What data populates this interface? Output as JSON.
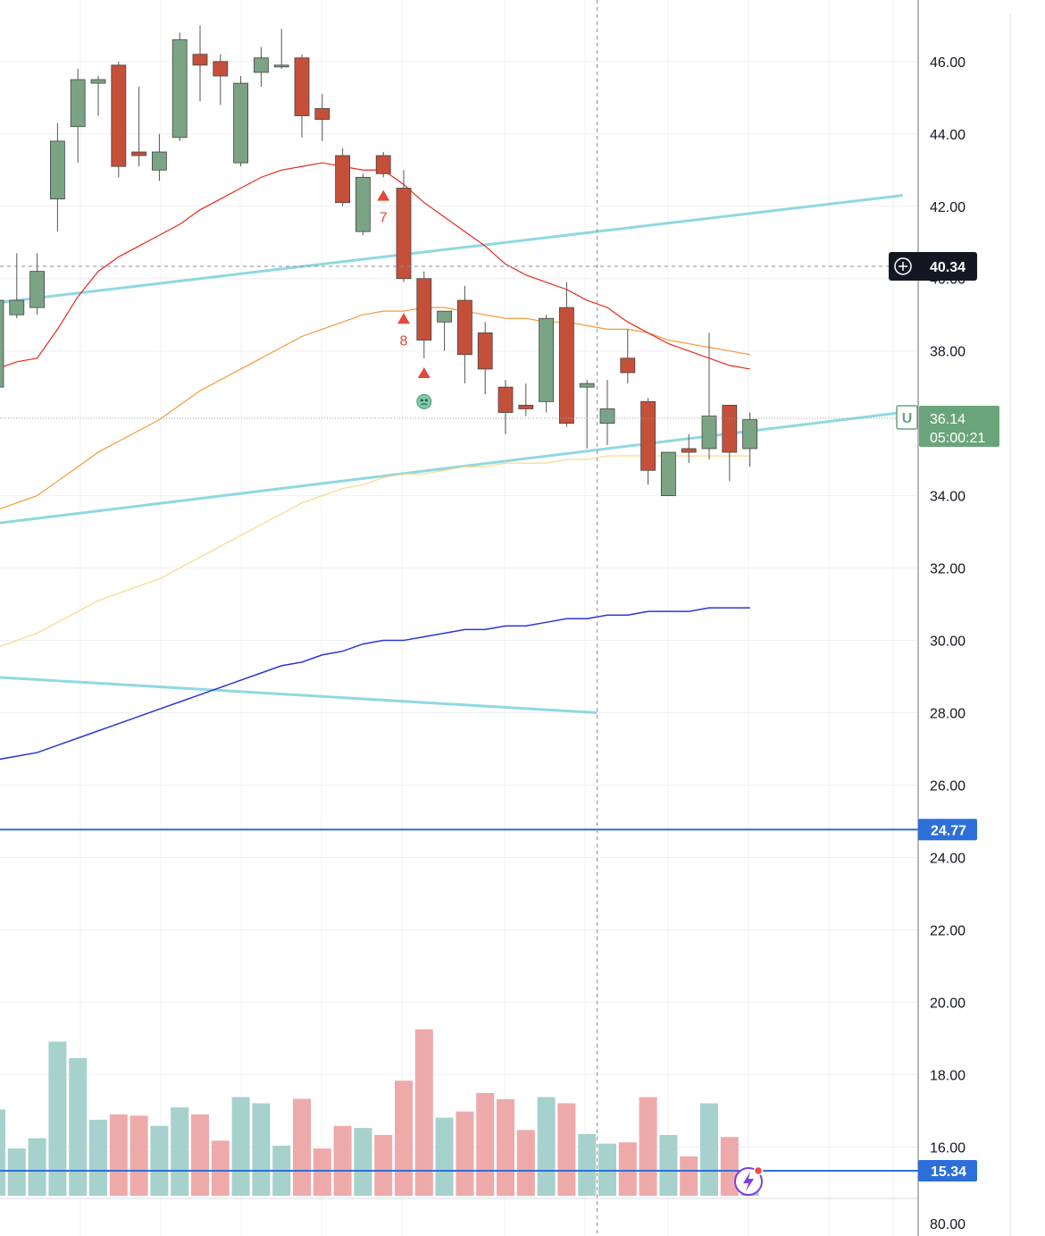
{
  "chart_data": {
    "type": "candlestick",
    "ylim": [
      14.6,
      47.7
    ],
    "y_ticks": [
      "46.00",
      "44.00",
      "42.00",
      "40.00",
      "38.00",
      "34.00",
      "32.00",
      "30.00",
      "28.00",
      "26.00",
      "24.00",
      "22.00",
      "20.00",
      "18.00",
      "16.00"
    ],
    "bottom_pane_label": "80.00",
    "grid": true,
    "candles": [
      {
        "o": 37.0,
        "h": 39.5,
        "l": 36.8,
        "c": 39.4,
        "v": 2.1
      },
      {
        "o": 39.0,
        "h": 40.7,
        "l": 38.9,
        "c": 39.4,
        "v": 1.15
      },
      {
        "o": 39.2,
        "h": 40.7,
        "l": 39.0,
        "c": 40.2,
        "v": 1.4
      },
      {
        "o": 42.2,
        "h": 44.3,
        "l": 41.3,
        "c": 43.8,
        "v": 3.75
      },
      {
        "o": 44.2,
        "h": 45.8,
        "l": 43.2,
        "c": 45.5,
        "v": 3.35
      },
      {
        "o": 45.4,
        "h": 45.6,
        "l": 44.5,
        "c": 45.5,
        "v": 1.85
      },
      {
        "o": 45.9,
        "h": 46.0,
        "l": 42.8,
        "c": 43.1,
        "v": 1.98
      },
      {
        "o": 43.5,
        "h": 45.3,
        "l": 43.1,
        "c": 43.4,
        "v": 1.95
      },
      {
        "o": 43.0,
        "h": 44.0,
        "l": 42.7,
        "c": 43.5,
        "v": 1.7
      },
      {
        "o": 43.9,
        "h": 46.8,
        "l": 43.8,
        "c": 46.6,
        "v": 2.15
      },
      {
        "o": 46.2,
        "h": 47.0,
        "l": 44.9,
        "c": 45.9,
        "v": 1.98
      },
      {
        "o": 46.0,
        "h": 46.2,
        "l": 44.8,
        "c": 45.6,
        "v": 1.34
      },
      {
        "o": 43.2,
        "h": 45.6,
        "l": 43.1,
        "c": 45.4,
        "v": 2.4
      },
      {
        "o": 45.7,
        "h": 46.4,
        "l": 45.3,
        "c": 46.1,
        "v": 2.25
      },
      {
        "o": 45.9,
        "h": 46.9,
        "l": 45.8,
        "c": 45.9,
        "v": 1.22
      },
      {
        "o": 46.1,
        "h": 46.2,
        "l": 43.9,
        "c": 44.5,
        "v": 2.36
      },
      {
        "o": 44.7,
        "h": 45.1,
        "l": 43.8,
        "c": 44.4,
        "v": 1.15
      },
      {
        "o": 43.4,
        "h": 43.6,
        "l": 42.0,
        "c": 42.1,
        "v": 1.7
      },
      {
        "o": 41.3,
        "h": 42.9,
        "l": 41.2,
        "c": 42.8,
        "v": 1.65
      },
      {
        "o": 43.4,
        "h": 43.5,
        "l": 42.8,
        "c": 42.9,
        "v": 1.48
      },
      {
        "o": 42.5,
        "h": 43.0,
        "l": 39.9,
        "c": 40.0,
        "v": 2.8
      },
      {
        "o": 40.0,
        "h": 40.2,
        "l": 37.8,
        "c": 38.3,
        "v": 4.05
      },
      {
        "o": 38.8,
        "h": 39.1,
        "l": 38.0,
        "c": 39.1,
        "v": 1.9
      },
      {
        "o": 39.4,
        "h": 39.8,
        "l": 37.1,
        "c": 37.9,
        "v": 2.05
      },
      {
        "o": 38.5,
        "h": 38.8,
        "l": 36.8,
        "c": 37.5,
        "v": 2.5
      },
      {
        "o": 37.0,
        "h": 37.2,
        "l": 35.7,
        "c": 36.3,
        "v": 2.35
      },
      {
        "o": 36.5,
        "h": 37.1,
        "l": 36.2,
        "c": 36.4,
        "v": 1.6
      },
      {
        "o": 36.6,
        "h": 39.0,
        "l": 36.3,
        "c": 38.9,
        "v": 2.4
      },
      {
        "o": 39.2,
        "h": 39.9,
        "l": 35.9,
        "c": 36.0,
        "v": 2.25
      },
      {
        "o": 37.0,
        "h": 37.2,
        "l": 35.3,
        "c": 37.1,
        "v": 1.5
      },
      {
        "o": 36.0,
        "h": 37.2,
        "l": 35.4,
        "c": 36.4,
        "v": 1.27
      },
      {
        "o": 37.8,
        "h": 38.6,
        "l": 37.1,
        "c": 37.4,
        "v": 1.3
      },
      {
        "o": 36.6,
        "h": 36.7,
        "l": 34.3,
        "c": 34.7,
        "v": 2.4
      },
      {
        "o": 34.0,
        "h": 35.1,
        "l": 34.0,
        "c": 35.2,
        "v": 1.48
      },
      {
        "o": 35.3,
        "h": 35.7,
        "l": 34.9,
        "c": 35.2,
        "v": 0.96
      },
      {
        "o": 35.3,
        "h": 38.5,
        "l": 35.0,
        "c": 36.2,
        "v": 2.25
      },
      {
        "o": 36.5,
        "h": 36.5,
        "l": 34.4,
        "c": 35.2,
        "v": 1.43
      },
      {
        "o": 35.3,
        "h": 36.3,
        "l": 34.8,
        "c": 36.1,
        "v": 0.5
      }
    ],
    "ma_red": [
      37.5,
      37.7,
      37.8,
      38.6,
      39.5,
      40.2,
      40.6,
      40.9,
      41.2,
      41.5,
      41.9,
      42.2,
      42.5,
      42.8,
      43.0,
      43.1,
      43.2,
      43.1,
      43.0,
      43.0,
      42.6,
      42.1,
      41.7,
      41.3,
      40.9,
      40.4,
      40.1,
      39.9,
      39.7,
      39.4,
      39.2,
      38.8,
      38.5,
      38.2,
      38.0,
      37.8,
      37.6,
      37.5
    ],
    "ma_orange": [
      33.6,
      33.8,
      34.0,
      34.4,
      34.8,
      35.2,
      35.5,
      35.8,
      36.1,
      36.5,
      36.9,
      37.2,
      37.5,
      37.8,
      38.1,
      38.4,
      38.6,
      38.8,
      39.0,
      39.1,
      39.1,
      39.2,
      39.2,
      39.1,
      39.0,
      38.9,
      38.9,
      38.8,
      38.8,
      38.7,
      38.6,
      38.6,
      38.5,
      38.3,
      38.2,
      38.1,
      38.0,
      37.9
    ],
    "ma_yellow": [
      29.8,
      30.0,
      30.2,
      30.5,
      30.8,
      31.1,
      31.3,
      31.5,
      31.7,
      32.0,
      32.3,
      32.6,
      32.9,
      33.2,
      33.5,
      33.8,
      34.0,
      34.2,
      34.3,
      34.5,
      34.6,
      34.6,
      34.7,
      34.8,
      34.8,
      34.9,
      34.9,
      34.9,
      35.0,
      35.0,
      35.1,
      35.1,
      35.1,
      35.1,
      35.1,
      35.1,
      35.1,
      35.1
    ],
    "ma_blue": [
      26.7,
      26.8,
      26.9,
      27.1,
      27.3,
      27.5,
      27.7,
      27.9,
      28.1,
      28.3,
      28.5,
      28.7,
      28.9,
      29.1,
      29.3,
      29.4,
      29.6,
      29.7,
      29.9,
      30.0,
      30.0,
      30.1,
      30.2,
      30.3,
      30.3,
      30.4,
      30.4,
      30.5,
      30.6,
      30.6,
      30.7,
      30.7,
      30.8,
      30.8,
      30.8,
      30.9,
      30.9,
      30.9
    ],
    "trendlines": [
      {
        "from": [
          -0.5,
          39.3
        ],
        "to": [
          44.5,
          42.3
        ]
      },
      {
        "from": [
          -0.5,
          33.2
        ],
        "to": [
          44.5,
          36.3
        ]
      },
      {
        "from": [
          -0.5,
          29.0
        ],
        "to": [
          29.5,
          28.0
        ]
      }
    ],
    "hlines": [
      {
        "y": 24.77,
        "label": "24.77"
      },
      {
        "y": 15.34,
        "label": "15.34"
      }
    ],
    "crosshair": {
      "y": 40.34,
      "label": "40.34",
      "x_index": 29.5
    },
    "last_price": {
      "y": 36.14,
      "label": "36.14",
      "countdown": "05:00:21",
      "badge": "U"
    },
    "markers": [
      {
        "index": 19,
        "y": 42.3,
        "label": "7"
      },
      {
        "index": 20,
        "y": 38.9,
        "label": "8"
      },
      {
        "index": 21,
        "y": 37.4,
        "label": ""
      }
    ],
    "emoji_marker": {
      "index": 21,
      "y": 36.6
    },
    "colors": {
      "up_body": "#7ba484",
      "down_body": "#c5503a",
      "wick": "#555555",
      "ma_red": "#e8291c",
      "ma_orange": "#f59a3a",
      "ma_yellow": "#f7d98a",
      "ma_blue": "#2936d8",
      "trend": "#8fd8e2",
      "hline": "#2d6fd8",
      "vol_up": "#a6d1cd",
      "vol_down": "#eeaaaa",
      "crosshair_tag": "#131722",
      "last_tag": "#6aa47a"
    }
  }
}
